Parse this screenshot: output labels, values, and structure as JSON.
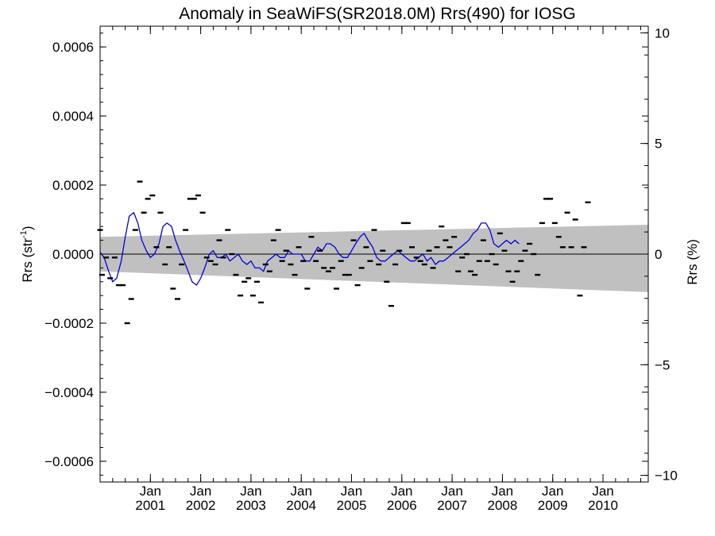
{
  "chart_data": {
    "type": "scatter",
    "title": "Anomaly in SeaWiFS(SR2018.0M) Rrs(490) for IOSG",
    "ylabel": "Rrs (str",
    "ylabel_sup": "-1",
    "ylabel_close": ")",
    "y2label": "Rrs (%)",
    "xlim": [
      2000.0,
      2010.9
    ],
    "ylim": [
      -0.00066,
      0.00066
    ],
    "y2lim": [
      -10.3,
      10.3
    ],
    "yticks": [
      {
        "v": 0.0006,
        "label": "0.0006"
      },
      {
        "v": 0.0004,
        "label": "0.0004"
      },
      {
        "v": 0.0002,
        "label": "0.0002"
      },
      {
        "v": 0.0,
        "label": "0.0000"
      },
      {
        "v": -0.0002,
        "label": "−0.0002"
      },
      {
        "v": -0.0004,
        "label": "−0.0004"
      },
      {
        "v": -0.0006,
        "label": "−0.0006"
      }
    ],
    "y2ticks": [
      {
        "v": 10,
        "label": "10"
      },
      {
        "v": 5,
        "label": "5"
      },
      {
        "v": 0,
        "label": "0"
      },
      {
        "v": -5,
        "label": "−5"
      },
      {
        "v": -10,
        "label": "−10"
      }
    ],
    "xticks": [
      {
        "x": 2001.0,
        "month": "Jan",
        "year": "2001"
      },
      {
        "x": 2002.0,
        "month": "Jan",
        "year": "2002"
      },
      {
        "x": 2003.0,
        "month": "Jan",
        "year": "2003"
      },
      {
        "x": 2004.0,
        "month": "Jan",
        "year": "2004"
      },
      {
        "x": 2005.0,
        "month": "Jan",
        "year": "2005"
      },
      {
        "x": 2006.0,
        "month": "Jan",
        "year": "2006"
      },
      {
        "x": 2007.0,
        "month": "Jan",
        "year": "2007"
      },
      {
        "x": 2008.0,
        "month": "Jan",
        "year": "2008"
      },
      {
        "x": 2009.0,
        "month": "Jan",
        "year": "2009"
      },
      {
        "x": 2010.0,
        "month": "Jan",
        "year": "2010"
      }
    ],
    "band": {
      "x0": 2000.0,
      "lower0": -5e-05,
      "upper0": 5e-05,
      "x1": 2010.9,
      "lower1": -0.00011,
      "upper1": 8.5e-05
    },
    "points": [
      [
        2000.0,
        7e-05
      ],
      [
        2000.04,
        -6e-05
      ],
      [
        2000.12,
        -1e-05
      ],
      [
        2000.2,
        -7e-05
      ],
      [
        2000.29,
        -1e-05
      ],
      [
        2000.37,
        -9e-05
      ],
      [
        2000.45,
        -9e-05
      ],
      [
        2000.54,
        -0.0002
      ],
      [
        2000.62,
        -0.00013
      ],
      [
        2000.7,
        7e-05
      ],
      [
        2000.79,
        0.00021
      ],
      [
        2000.87,
        0.00012
      ],
      [
        2000.95,
        0.00016
      ],
      [
        2001.04,
        0.00017
      ],
      [
        2001.12,
        2e-05
      ],
      [
        2001.2,
        0.00012
      ],
      [
        2001.29,
        -3e-05
      ],
      [
        2001.37,
        2e-05
      ],
      [
        2001.45,
        -0.0001
      ],
      [
        2001.54,
        -0.00013
      ],
      [
        2001.62,
        -3e-05
      ],
      [
        2001.7,
        7e-05
      ],
      [
        2001.79,
        0.00016
      ],
      [
        2001.87,
        0.00016
      ],
      [
        2001.95,
        0.00017
      ],
      [
        2002.04,
        0.00012
      ],
      [
        2002.12,
        -1e-05
      ],
      [
        2002.2,
        -2e-05
      ],
      [
        2002.29,
        -3e-05
      ],
      [
        2002.37,
        4e-05
      ],
      [
        2002.45,
        -1e-05
      ],
      [
        2002.54,
        7e-05
      ],
      [
        2002.62,
        0.0
      ],
      [
        2002.7,
        -6e-05
      ],
      [
        2002.79,
        -0.00012
      ],
      [
        2002.87,
        -8e-05
      ],
      [
        2002.95,
        -7e-05
      ],
      [
        2003.04,
        -0.00012
      ],
      [
        2003.12,
        -8e-05
      ],
      [
        2003.2,
        -0.00014
      ],
      [
        2003.29,
        -3e-05
      ],
      [
        2003.37,
        -5e-05
      ],
      [
        2003.45,
        4e-05
      ],
      [
        2003.54,
        7e-05
      ],
      [
        2003.62,
        -2e-05
      ],
      [
        2003.7,
        1e-05
      ],
      [
        2003.79,
        -3e-05
      ],
      [
        2003.87,
        -6e-05
      ],
      [
        2003.95,
        2e-05
      ],
      [
        2004.04,
        -2e-05
      ],
      [
        2004.12,
        -0.0001
      ],
      [
        2004.2,
        5e-05
      ],
      [
        2004.29,
        -2e-05
      ],
      [
        2004.37,
        1e-05
      ],
      [
        2004.45,
        -4e-05
      ],
      [
        2004.54,
        -5e-05
      ],
      [
        2004.62,
        -4e-05
      ],
      [
        2004.7,
        -0.0001
      ],
      [
        2004.79,
        -2e-05
      ],
      [
        2004.87,
        -6e-05
      ],
      [
        2004.95,
        -6e-05
      ],
      [
        2005.04,
        4e-05
      ],
      [
        2005.12,
        -9e-05
      ],
      [
        2005.2,
        -4e-05
      ],
      [
        2005.29,
        2e-05
      ],
      [
        2005.37,
        -2e-05
      ],
      [
        2005.45,
        7e-05
      ],
      [
        2005.54,
        -3e-05
      ],
      [
        2005.62,
        1e-05
      ],
      [
        2005.7,
        -8e-05
      ],
      [
        2005.79,
        -0.00015
      ],
      [
        2005.87,
        -3e-05
      ],
      [
        2005.95,
        1e-05
      ],
      [
        2006.04,
        9e-05
      ],
      [
        2006.12,
        9e-05
      ],
      [
        2006.2,
        2e-05
      ],
      [
        2006.29,
        -1e-05
      ],
      [
        2006.37,
        -2e-05
      ],
      [
        2006.45,
        -3e-05
      ],
      [
        2006.54,
        1e-05
      ],
      [
        2006.62,
        -4e-05
      ],
      [
        2006.7,
        2e-05
      ],
      [
        2006.79,
        8e-05
      ],
      [
        2006.87,
        4e-05
      ],
      [
        2006.95,
        2e-05
      ],
      [
        2007.04,
        5e-05
      ],
      [
        2007.12,
        -5e-05
      ],
      [
        2007.2,
        -1e-05
      ],
      [
        2007.29,
        0.0
      ],
      [
        2007.37,
        -5e-05
      ],
      [
        2007.45,
        -6e-05
      ],
      [
        2007.54,
        -2e-05
      ],
      [
        2007.62,
        4e-05
      ],
      [
        2007.7,
        -2e-05
      ],
      [
        2007.79,
        0.0
      ],
      [
        2007.87,
        -3e-05
      ],
      [
        2007.95,
        6e-05
      ],
      [
        2008.04,
        1e-05
      ],
      [
        2008.12,
        -5e-05
      ],
      [
        2008.2,
        -8e-05
      ],
      [
        2008.29,
        -5e-05
      ],
      [
        2008.37,
        -2e-05
      ],
      [
        2008.45,
        1e-05
      ],
      [
        2008.54,
        3e-05
      ],
      [
        2008.62,
        0.0
      ],
      [
        2008.7,
        -6e-05
      ],
      [
        2008.79,
        9e-05
      ],
      [
        2008.87,
        0.00016
      ],
      [
        2008.95,
        0.00016
      ],
      [
        2009.04,
        9e-05
      ],
      [
        2009.12,
        5e-05
      ],
      [
        2009.2,
        2e-05
      ],
      [
        2009.29,
        0.00012
      ],
      [
        2009.37,
        2e-05
      ],
      [
        2009.45,
        0.0001
      ],
      [
        2009.54,
        -0.00012
      ],
      [
        2009.62,
        2e-05
      ],
      [
        2009.7,
        0.00015
      ]
    ],
    "line": [
      [
        2000.0,
        5e-06
      ],
      [
        2000.08,
        -1e-05
      ],
      [
        2000.17,
        -5e-05
      ],
      [
        2000.25,
        -8e-05
      ],
      [
        2000.33,
        -7e-05
      ],
      [
        2000.42,
        -2e-05
      ],
      [
        2000.5,
        5e-05
      ],
      [
        2000.58,
        0.00011
      ],
      [
        2000.67,
        0.00012
      ],
      [
        2000.75,
        9e-05
      ],
      [
        2000.83,
        4e-05
      ],
      [
        2000.92,
        1e-05
      ],
      [
        2001.0,
        -1e-05
      ],
      [
        2001.08,
        0.0
      ],
      [
        2001.17,
        3e-05
      ],
      [
        2001.25,
        8e-05
      ],
      [
        2001.33,
        9e-05
      ],
      [
        2001.42,
        8e-05
      ],
      [
        2001.5,
        4e-05
      ],
      [
        2001.58,
        1e-05
      ],
      [
        2001.67,
        -2e-05
      ],
      [
        2001.75,
        -5e-05
      ],
      [
        2001.83,
        -8e-05
      ],
      [
        2001.92,
        -9e-05
      ],
      [
        2002.0,
        -7e-05
      ],
      [
        2002.08,
        -4e-05
      ],
      [
        2002.17,
        0.0
      ],
      [
        2002.25,
        1e-05
      ],
      [
        2002.33,
        -1e-05
      ],
      [
        2002.42,
        -1e-05
      ],
      [
        2002.5,
        0.0
      ],
      [
        2002.58,
        -2e-05
      ],
      [
        2002.67,
        -1e-05
      ],
      [
        2002.75,
        0.0
      ],
      [
        2002.83,
        -2e-05
      ],
      [
        2002.92,
        -3e-05
      ],
      [
        2003.0,
        -2e-05
      ],
      [
        2003.08,
        -4e-05
      ],
      [
        2003.17,
        -4e-05
      ],
      [
        2003.25,
        -5e-05
      ],
      [
        2003.33,
        -2e-05
      ],
      [
        2003.42,
        -1e-05
      ],
      [
        2003.5,
        0.0
      ],
      [
        2003.58,
        -1e-05
      ],
      [
        2003.67,
        -1e-05
      ],
      [
        2003.75,
        1e-05
      ],
      [
        2003.83,
        0.0
      ],
      [
        2003.92,
        0.0
      ],
      [
        2004.0,
        0.0
      ],
      [
        2004.08,
        -2e-05
      ],
      [
        2004.17,
        -2e-05
      ],
      [
        2004.25,
        0.0
      ],
      [
        2004.33,
        2e-05
      ],
      [
        2004.42,
        1e-05
      ],
      [
        2004.5,
        3e-05
      ],
      [
        2004.58,
        3e-05
      ],
      [
        2004.67,
        2e-05
      ],
      [
        2004.75,
        0.0
      ],
      [
        2004.83,
        -1e-05
      ],
      [
        2004.92,
        -1e-05
      ],
      [
        2005.0,
        1e-05
      ],
      [
        2005.08,
        3e-05
      ],
      [
        2005.17,
        5e-05
      ],
      [
        2005.25,
        6e-05
      ],
      [
        2005.33,
        4e-05
      ],
      [
        2005.42,
        2e-05
      ],
      [
        2005.5,
        -1e-05
      ],
      [
        2005.58,
        -2e-05
      ],
      [
        2005.67,
        -2e-05
      ],
      [
        2005.75,
        -1e-05
      ],
      [
        2005.83,
        0.0
      ],
      [
        2005.92,
        1e-05
      ],
      [
        2006.0,
        0.0
      ],
      [
        2006.08,
        -1e-05
      ],
      [
        2006.17,
        -2e-05
      ],
      [
        2006.25,
        -2e-05
      ],
      [
        2006.33,
        -1e-05
      ],
      [
        2006.42,
        0.0
      ],
      [
        2006.5,
        -2e-05
      ],
      [
        2006.58,
        -1e-05
      ],
      [
        2006.67,
        -3e-05
      ],
      [
        2006.75,
        -2e-05
      ],
      [
        2006.83,
        -2e-05
      ],
      [
        2006.92,
        -1e-05
      ],
      [
        2007.0,
        0.0
      ],
      [
        2007.08,
        1e-05
      ],
      [
        2007.17,
        2e-05
      ],
      [
        2007.25,
        3e-05
      ],
      [
        2007.33,
        4e-05
      ],
      [
        2007.42,
        6e-05
      ],
      [
        2007.5,
        7e-05
      ],
      [
        2007.58,
        9e-05
      ],
      [
        2007.67,
        9e-05
      ],
      [
        2007.75,
        7e-05
      ],
      [
        2007.83,
        3e-05
      ],
      [
        2007.92,
        2e-05
      ],
      [
        2008.0,
        3e-05
      ],
      [
        2008.08,
        4e-05
      ],
      [
        2008.17,
        3e-05
      ],
      [
        2008.25,
        4e-05
      ],
      [
        2008.33,
        3e-05
      ]
    ]
  }
}
